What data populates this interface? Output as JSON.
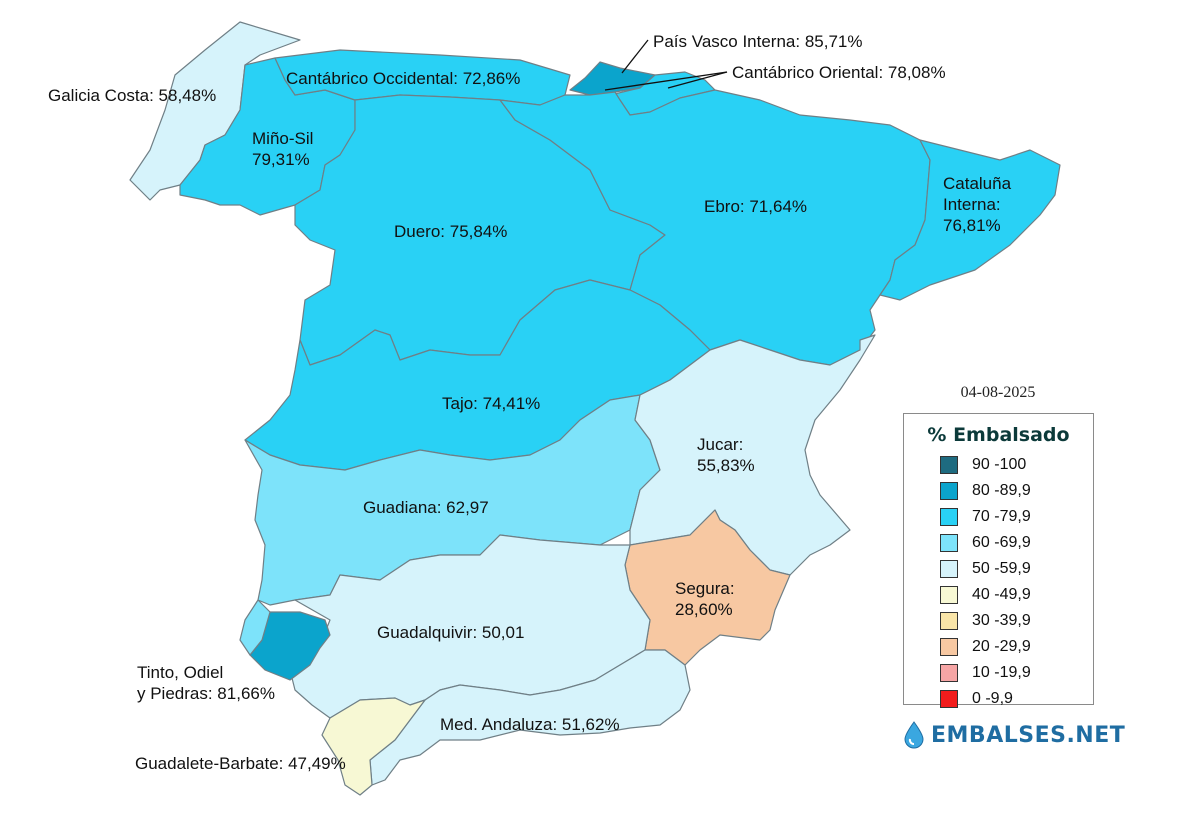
{
  "map": {
    "regions": [
      {
        "id": "galicia-costa",
        "label_lines": [
          "Galicia Costa: 58,48%"
        ],
        "value": 58.48,
        "color": "#d6f3fb"
      },
      {
        "id": "mino-sil",
        "label_lines": [
          "Miño-Sil",
          "79,31%"
        ],
        "value": 79.31,
        "color": "#29d1f5"
      },
      {
        "id": "cantabrico-occidental",
        "label_lines": [
          "Cantábrico Occidental: 72,86%"
        ],
        "value": 72.86,
        "color": "#29d1f5"
      },
      {
        "id": "pais-vasco-interna",
        "label_lines": [
          "País Vasco Interna: 85,71%"
        ],
        "value": 85.71,
        "color": "#0ba4cc"
      },
      {
        "id": "cantabrico-oriental",
        "label_lines": [
          "Cantábrico Oriental: 78,08%"
        ],
        "value": 78.08,
        "color": "#29d1f5"
      },
      {
        "id": "duero",
        "label_lines": [
          "Duero: 75,84%"
        ],
        "value": 75.84,
        "color": "#29d1f5"
      },
      {
        "id": "ebro",
        "label_lines": [
          "Ebro: 71,64%"
        ],
        "value": 71.64,
        "color": "#29d1f5"
      },
      {
        "id": "cataluna-interna",
        "label_lines": [
          "Cataluña",
          "Interna:",
          "76,81%"
        ],
        "value": 76.81,
        "color": "#29d1f5"
      },
      {
        "id": "tajo",
        "label_lines": [
          "Tajo: 74,41%"
        ],
        "value": 74.41,
        "color": "#29d1f5"
      },
      {
        "id": "guadiana",
        "label_lines": [
          "Guadiana: 62,97"
        ],
        "value": 62.97,
        "color": "#7de3fa"
      },
      {
        "id": "jucar",
        "label_lines": [
          "Jucar:",
          "55,83%"
        ],
        "value": 55.83,
        "color": "#d6f3fb"
      },
      {
        "id": "segura",
        "label_lines": [
          "Segura:",
          "28,60%"
        ],
        "value": 28.6,
        "color": "#f7c8a2"
      },
      {
        "id": "guadalquivir",
        "label_lines": [
          "Guadalquivir: 50,01"
        ],
        "value": 50.01,
        "color": "#d6f3fb"
      },
      {
        "id": "tinto-odiel-piedras",
        "label_lines": [
          "Tinto, Odiel",
          "y Piedras: 81,66%"
        ],
        "value": 81.66,
        "color": "#0ba4cc"
      },
      {
        "id": "med-andaluza",
        "label_lines": [
          "Med. Andaluza: 51,62%"
        ],
        "value": 51.62,
        "color": "#d6f3fb"
      },
      {
        "id": "guadalete-barbate",
        "label_lines": [
          "Guadalete-Barbate: 47,49%"
        ],
        "value": 47.49,
        "color": "#f7f8d4"
      }
    ]
  },
  "date": "04-08-2025",
  "legend": {
    "title": "% Embalsado",
    "items": [
      {
        "label": "90 -100",
        "color": "#1e6b80"
      },
      {
        "label": "80 -89,9",
        "color": "#0ba4cc"
      },
      {
        "label": "70 -79,9",
        "color": "#29d1f5"
      },
      {
        "label": "60 -69,9",
        "color": "#7de3fa"
      },
      {
        "label": "50 -59,9",
        "color": "#d6f3fb"
      },
      {
        "label": "40 -49,9",
        "color": "#f7f8d4"
      },
      {
        "label": "30 -39,9",
        "color": "#f9e5a8"
      },
      {
        "label": "20 -29,9",
        "color": "#f7c8a2"
      },
      {
        "label": "10 -19,9",
        "color": "#f6a5a5"
      },
      {
        "label": "0 -9,9",
        "color": "#f21c1c"
      }
    ]
  },
  "brand": {
    "text": "EMBALSES.NET",
    "icon": "water-drop-icon",
    "color": "#1f6da2"
  }
}
